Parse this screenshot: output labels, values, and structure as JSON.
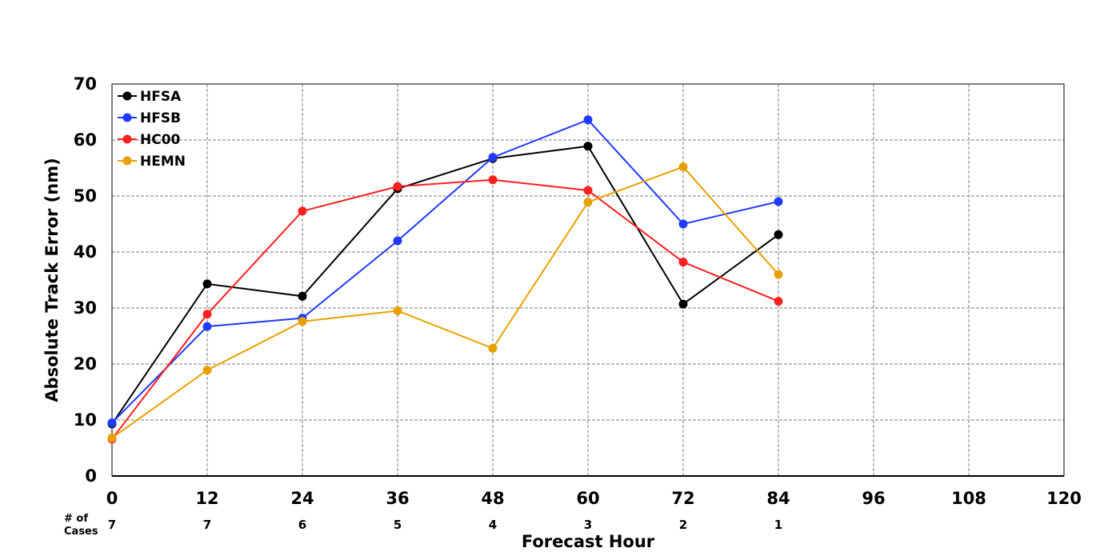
{
  "chart_data": {
    "type": "line",
    "title": "",
    "xlabel": "Forecast Hour",
    "ylabel": "Absolute Track Error (nm)",
    "xlim": [
      0,
      120
    ],
    "ylim": [
      0,
      70
    ],
    "xticks": [
      "0",
      "12",
      "24",
      "36",
      "48",
      "60",
      "72",
      "84",
      "96",
      "108",
      "120"
    ],
    "yticks": [
      "0",
      "10",
      "20",
      "30",
      "40",
      "50",
      "60",
      "70"
    ],
    "grid": true,
    "legend_position": "top-left",
    "cases_label": [
      "# of",
      "Cases"
    ],
    "cases": [
      {
        "x": 0,
        "n": "7"
      },
      {
        "x": 12,
        "n": "7"
      },
      {
        "x": 24,
        "n": "6"
      },
      {
        "x": 36,
        "n": "5"
      },
      {
        "x": 48,
        "n": "4"
      },
      {
        "x": 60,
        "n": "3"
      },
      {
        "x": 72,
        "n": "2"
      },
      {
        "x": 84,
        "n": "1"
      }
    ],
    "x": [
      0,
      12,
      24,
      36,
      48,
      60,
      72,
      84
    ],
    "series": [
      {
        "name": "HFSA",
        "color": "#000000",
        "values": [
          9.3,
          34.3,
          32.1,
          51.3,
          56.7,
          58.9,
          30.7,
          43.1
        ]
      },
      {
        "name": "HFSB",
        "color": "#1f3bff",
        "values": [
          9.5,
          26.7,
          28.2,
          42.0,
          56.9,
          63.6,
          45.0,
          49.0
        ]
      },
      {
        "name": "HC00",
        "color": "#ff2020",
        "values": [
          6.6,
          28.9,
          47.3,
          51.7,
          52.9,
          51.0,
          38.2,
          31.2
        ]
      },
      {
        "name": "HEMN",
        "color": "#e8a000",
        "values": [
          6.8,
          18.9,
          27.6,
          29.5,
          22.8,
          48.9,
          55.2,
          36.0
        ]
      }
    ]
  }
}
